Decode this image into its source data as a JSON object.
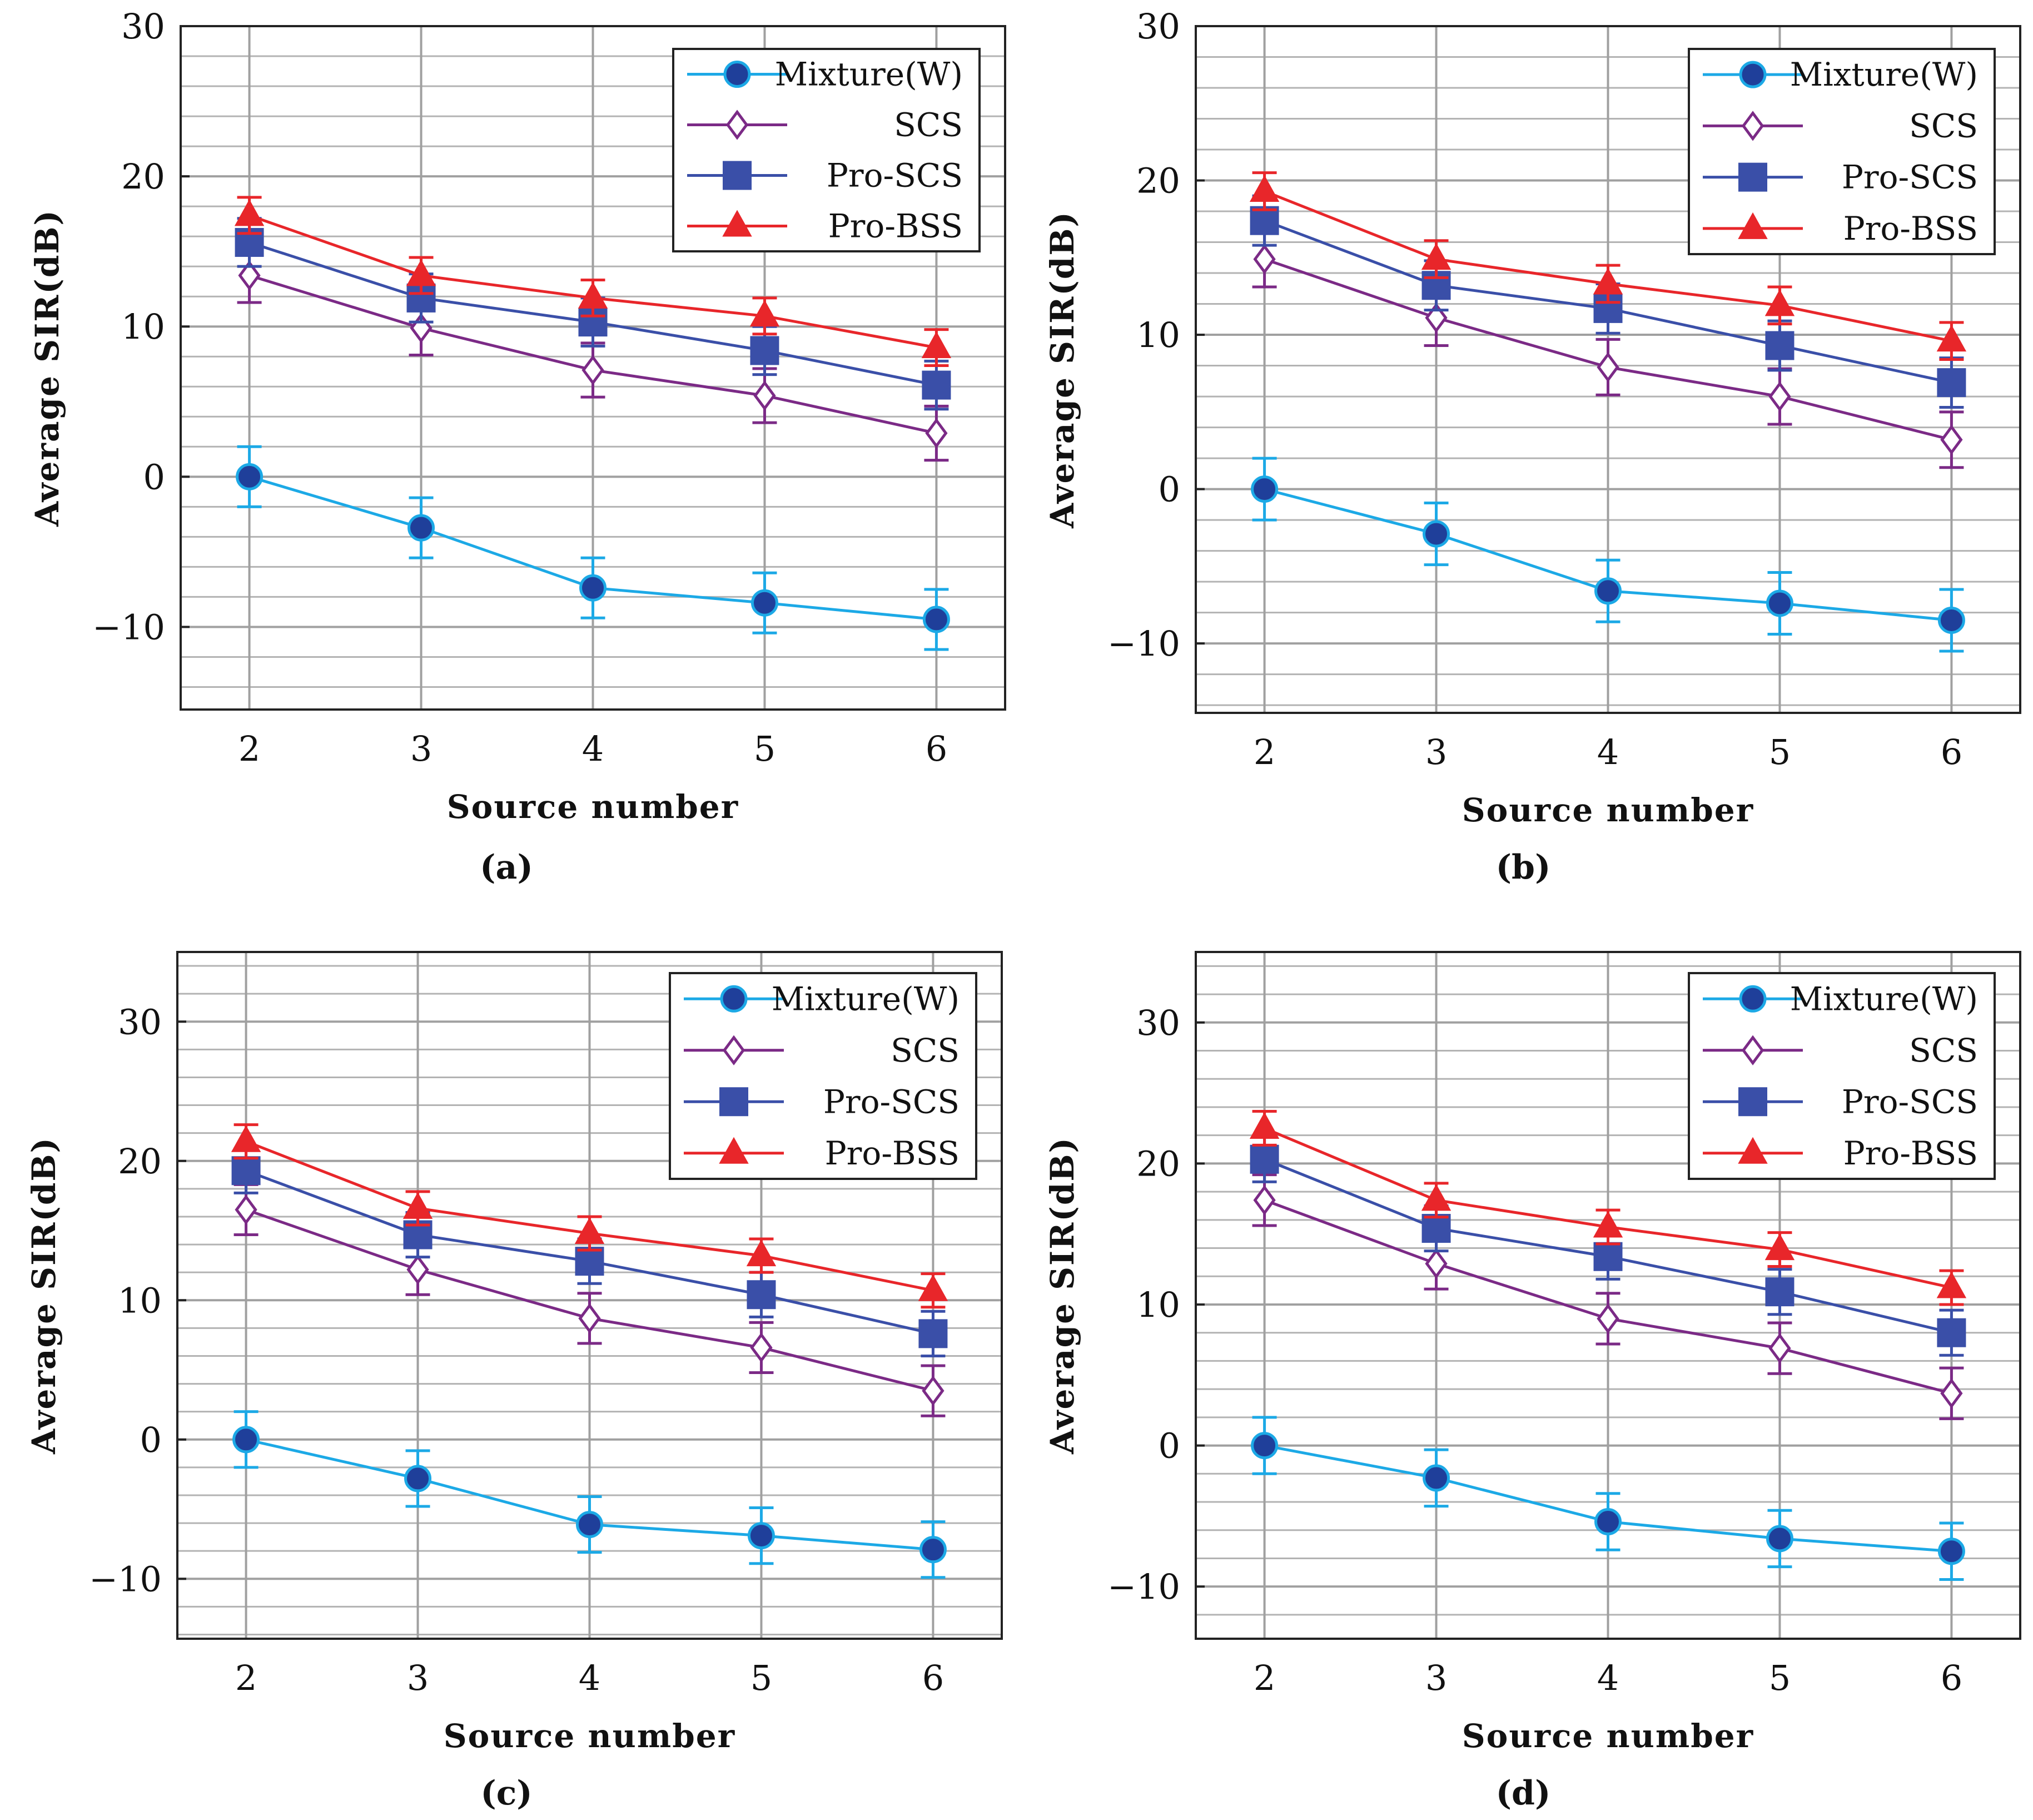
{
  "colors": {
    "mixture": "#1ca9e6",
    "scs": "#7b2a86",
    "pro_scs": "#3a4fa8",
    "pro_bss": "#e8262a",
    "grid": "#b3b3b3",
    "axis": "#222222"
  },
  "chart_data": [
    {
      "type": "line",
      "panel_label": "(a)",
      "xlabel": "Source number",
      "ylabel": "Average SIR(dB)",
      "x": [
        2,
        3,
        4,
        5,
        6
      ],
      "xticks": [
        "2",
        "3",
        "4",
        "5",
        "6"
      ],
      "ylim": [
        -15.5,
        30
      ],
      "yticks": [
        -10,
        0,
        10,
        20,
        30
      ],
      "yticklabels": [
        "−10",
        "0",
        "10",
        "20",
        "30"
      ],
      "grid": true,
      "legend_position": "top-right",
      "series": [
        {
          "name": "Mixture(W)",
          "key": "mixture",
          "marker": "circle",
          "values": [
            0,
            -3.4,
            -7.4,
            -8.4,
            -9.5
          ],
          "error": [
            2.0,
            2.0,
            2.0,
            2.0,
            2.0
          ]
        },
        {
          "name": "SCS",
          "key": "scs",
          "marker": "diamond",
          "values": [
            13.4,
            9.9,
            7.1,
            5.4,
            2.9
          ],
          "error": [
            1.8,
            1.8,
            1.8,
            1.8,
            1.8
          ]
        },
        {
          "name": "Pro-SCS",
          "key": "pro_scs",
          "marker": "square",
          "values": [
            15.6,
            11.9,
            10.3,
            8.4,
            6.1
          ],
          "error": [
            1.6,
            1.6,
            1.6,
            1.6,
            1.6
          ]
        },
        {
          "name": "Pro-BSS",
          "key": "pro_bss",
          "marker": "triangle",
          "values": [
            17.4,
            13.4,
            11.9,
            10.7,
            8.6
          ],
          "error": [
            1.2,
            1.2,
            1.2,
            1.2,
            1.2
          ]
        }
      ]
    },
    {
      "type": "line",
      "panel_label": "(b)",
      "xlabel": "Source number",
      "ylabel": "Average SIR(dB)",
      "x": [
        2,
        3,
        4,
        5,
        6
      ],
      "xticks": [
        "2",
        "3",
        "4",
        "5",
        "6"
      ],
      "ylim": [
        -14.5,
        30
      ],
      "yticks": [
        -10,
        0,
        10,
        20,
        30
      ],
      "yticklabels": [
        "−10",
        "0",
        "10",
        "20",
        "30"
      ],
      "grid": true,
      "legend_position": "top-right",
      "series": [
        {
          "name": "Mixture(W)",
          "key": "mixture",
          "marker": "circle",
          "values": [
            0,
            -2.9,
            -6.6,
            -7.4,
            -8.5
          ],
          "error": [
            2.0,
            2.0,
            2.0,
            2.0,
            2.0
          ]
        },
        {
          "name": "SCS",
          "key": "scs",
          "marker": "diamond",
          "values": [
            14.9,
            11.1,
            7.9,
            6.0,
            3.2
          ],
          "error": [
            1.8,
            1.8,
            1.8,
            1.8,
            1.8
          ]
        },
        {
          "name": "Pro-SCS",
          "key": "pro_scs",
          "marker": "square",
          "values": [
            17.4,
            13.2,
            11.7,
            9.3,
            6.9
          ],
          "error": [
            1.6,
            1.6,
            1.6,
            1.6,
            1.6
          ]
        },
        {
          "name": "Pro-BSS",
          "key": "pro_bss",
          "marker": "triangle",
          "values": [
            19.3,
            14.9,
            13.3,
            11.9,
            9.6
          ],
          "error": [
            1.2,
            1.2,
            1.2,
            1.2,
            1.2
          ]
        }
      ]
    },
    {
      "type": "line",
      "panel_label": "(c)",
      "xlabel": "Source number",
      "ylabel": "Average SIR(dB)",
      "x": [
        2,
        3,
        4,
        5,
        6
      ],
      "xticks": [
        "2",
        "3",
        "4",
        "5",
        "6"
      ],
      "ylim": [
        -14.3,
        35
      ],
      "yticks": [
        -10,
        0,
        10,
        20,
        30
      ],
      "yticklabels": [
        "−10",
        "0",
        "10",
        "20",
        "30"
      ],
      "grid": true,
      "legend_position": "top-right",
      "series": [
        {
          "name": "Mixture(W)",
          "key": "mixture",
          "marker": "circle",
          "values": [
            0,
            -2.8,
            -6.1,
            -6.9,
            -7.9
          ],
          "error": [
            2.0,
            2.0,
            2.0,
            2.0,
            2.0
          ]
        },
        {
          "name": "SCS",
          "key": "scs",
          "marker": "diamond",
          "values": [
            16.5,
            12.2,
            8.7,
            6.6,
            3.5
          ],
          "error": [
            1.8,
            1.8,
            1.8,
            1.8,
            1.8
          ]
        },
        {
          "name": "Pro-SCS",
          "key": "pro_scs",
          "marker": "square",
          "values": [
            19.3,
            14.7,
            12.8,
            10.4,
            7.6
          ],
          "error": [
            1.6,
            1.6,
            1.6,
            1.6,
            1.6
          ]
        },
        {
          "name": "Pro-BSS",
          "key": "pro_bss",
          "marker": "triangle",
          "values": [
            21.4,
            16.6,
            14.8,
            13.2,
            10.7
          ],
          "error": [
            1.2,
            1.2,
            1.2,
            1.2,
            1.2
          ]
        }
      ]
    },
    {
      "type": "line",
      "panel_label": "(d)",
      "xlabel": "Source number",
      "ylabel": "Average SIR(dB)",
      "x": [
        2,
        3,
        4,
        5,
        6
      ],
      "xticks": [
        "2",
        "3",
        "4",
        "5",
        "6"
      ],
      "ylim": [
        -13.7,
        35
      ],
      "yticks": [
        -10,
        0,
        10,
        20,
        30
      ],
      "yticklabels": [
        "−10",
        "0",
        "10",
        "20",
        "30"
      ],
      "grid": true,
      "legend_position": "top-right",
      "series": [
        {
          "name": "Mixture(W)",
          "key": "mixture",
          "marker": "circle",
          "values": [
            0,
            -2.3,
            -5.4,
            -6.6,
            -7.5
          ],
          "error": [
            2.0,
            2.0,
            2.0,
            2.0,
            2.0
          ]
        },
        {
          "name": "SCS",
          "key": "scs",
          "marker": "diamond",
          "values": [
            17.4,
            12.9,
            9.0,
            6.9,
            3.7
          ],
          "error": [
            1.8,
            1.8,
            1.8,
            1.8,
            1.8
          ]
        },
        {
          "name": "Pro-SCS",
          "key": "pro_scs",
          "marker": "square",
          "values": [
            20.3,
            15.4,
            13.4,
            10.9,
            8.0
          ],
          "error": [
            1.6,
            1.6,
            1.6,
            1.6,
            1.6
          ]
        },
        {
          "name": "Pro-BSS",
          "key": "pro_bss",
          "marker": "triangle",
          "values": [
            22.5,
            17.4,
            15.5,
            13.9,
            11.2
          ],
          "error": [
            1.2,
            1.2,
            1.2,
            1.2,
            1.2
          ]
        }
      ]
    }
  ]
}
